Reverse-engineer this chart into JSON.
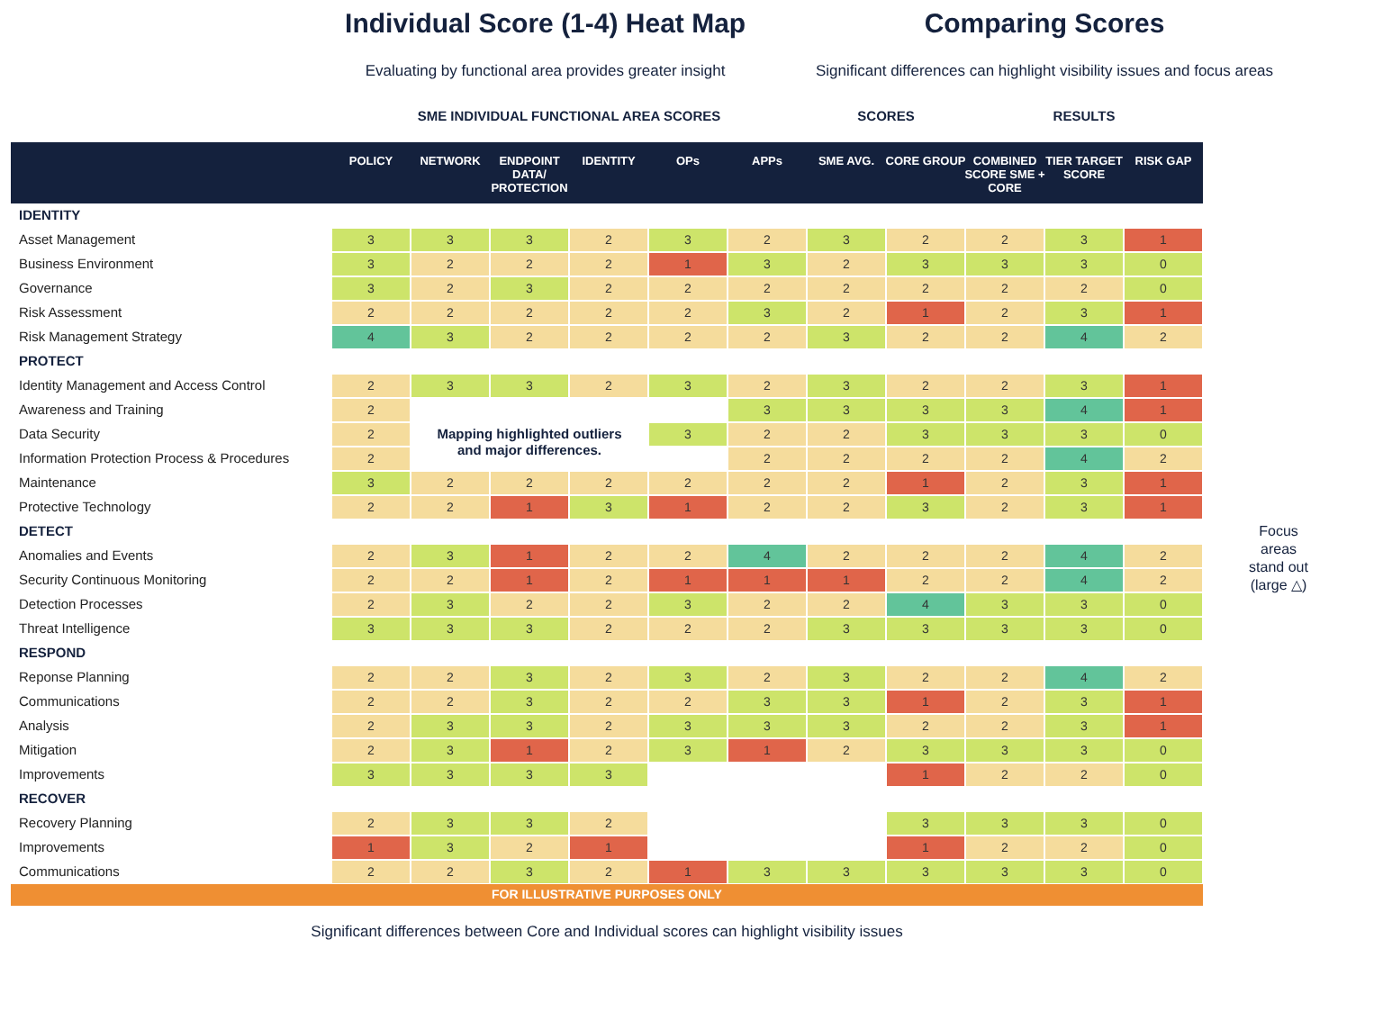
{
  "chart_data": {
    "type": "heatmap",
    "categories": [
      "POLICY",
      "NETWORK",
      "ENDPOINT DATA/ PROTECTION",
      "IDENTITY",
      "OPs",
      "APPs",
      "SME AVG.",
      "CORE GROUP",
      "COMBINED SCORE SME + CORE",
      "TIER TARGET SCORE",
      "RISK GAP"
    ],
    "y_categories": [
      "IDENTITY",
      "Asset Management",
      "Business Environment",
      "Governance",
      "Risk Assessment",
      "Risk Management Strategy",
      "PROTECT",
      "Identity Management and Access Control",
      "Awareness and Training",
      "Data Security",
      "Information Protection Process & Procedures",
      "Maintenance",
      "Protective Technology",
      "DETECT",
      "Anomalies and Events",
      "Security Continuous Monitoring",
      "Detection Processes",
      "Threat Intelligence",
      "RESPOND",
      "Reponse Planning",
      "Communications",
      "Analysis",
      "Mitigation",
      "Improvements",
      "RECOVER",
      "Recovery Planning",
      "Improvements",
      "Communications"
    ],
    "cells": [
      [
        null,
        null,
        null,
        null,
        null,
        null,
        null,
        null,
        null,
        null,
        null
      ],
      [
        3,
        3,
        3,
        2,
        3,
        2,
        3,
        2,
        2,
        3,
        1
      ],
      [
        3,
        2,
        2,
        2,
        1,
        3,
        2,
        3,
        3,
        3,
        0
      ],
      [
        3,
        2,
        3,
        2,
        2,
        2,
        2,
        2,
        2,
        2,
        0
      ],
      [
        2,
        2,
        2,
        2,
        2,
        3,
        2,
        1,
        2,
        3,
        1
      ],
      [
        4,
        3,
        2,
        2,
        2,
        2,
        3,
        2,
        2,
        4,
        2
      ],
      [
        null,
        null,
        null,
        null,
        null,
        null,
        null,
        null,
        null,
        null,
        null
      ],
      [
        2,
        3,
        3,
        2,
        3,
        2,
        3,
        2,
        2,
        3,
        1
      ],
      [
        2,
        null,
        null,
        null,
        null,
        3,
        3,
        3,
        3,
        4,
        1
      ],
      [
        2,
        null,
        null,
        null,
        3,
        2,
        2,
        3,
        3,
        3,
        0
      ],
      [
        2,
        null,
        null,
        null,
        null,
        2,
        2,
        2,
        2,
        4,
        2
      ],
      [
        3,
        2,
        2,
        2,
        2,
        2,
        2,
        1,
        2,
        3,
        1
      ],
      [
        2,
        2,
        1,
        3,
        1,
        2,
        2,
        3,
        2,
        3,
        1
      ],
      [
        null,
        null,
        null,
        null,
        null,
        null,
        null,
        null,
        null,
        null,
        null
      ],
      [
        2,
        3,
        1,
        2,
        2,
        4,
        2,
        2,
        2,
        4,
        2
      ],
      [
        2,
        2,
        1,
        2,
        1,
        1,
        1,
        2,
        2,
        4,
        2
      ],
      [
        2,
        3,
        2,
        2,
        3,
        2,
        2,
        4,
        3,
        3,
        0
      ],
      [
        3,
        3,
        3,
        2,
        2,
        2,
        3,
        3,
        3,
        3,
        0
      ],
      [
        null,
        null,
        null,
        null,
        null,
        null,
        null,
        null,
        null,
        null,
        null
      ],
      [
        2,
        2,
        3,
        2,
        3,
        2,
        3,
        2,
        2,
        4,
        2
      ],
      [
        2,
        2,
        3,
        2,
        2,
        3,
        3,
        1,
        2,
        3,
        1
      ],
      [
        2,
        3,
        3,
        2,
        3,
        3,
        3,
        2,
        2,
        3,
        1
      ],
      [
        2,
        3,
        1,
        2,
        3,
        1,
        2,
        3,
        3,
        3,
        0
      ],
      [
        3,
        3,
        3,
        3,
        null,
        null,
        null,
        1,
        2,
        2,
        0
      ],
      [
        null,
        null,
        null,
        null,
        null,
        null,
        null,
        null,
        null,
        null,
        null
      ],
      [
        2,
        3,
        3,
        2,
        null,
        null,
        null,
        3,
        3,
        3,
        0
      ],
      [
        1,
        3,
        2,
        1,
        null,
        null,
        null,
        1,
        2,
        2,
        0
      ],
      [
        2,
        2,
        3,
        2,
        1,
        3,
        3,
        3,
        3,
        3,
        0
      ]
    ],
    "colors": [
      "#cde46a",
      "#e0654a",
      "#f5dc9c",
      "#cde46a",
      "#62c49a"
    ],
    "data_labels": true,
    "annotations": [
      "Individual Score (1-4) Heat Map",
      "Evaluating by functional area provides greater insight",
      "Comparing Scores",
      "Significant differences can highlight visibility issues and focus areas",
      "SME INDIVIDUAL FUNCTIONAL AREA SCORES",
      "SCORES",
      "RESULTS",
      "Mapping highlighted outliers and major differences.",
      "Focus areas stand out (large △)",
      "Significant differences between Core and Individual scores can highlight visibility issues",
      "FOR ILLUSTRATIVE PURPOSES ONLY"
    ]
  }
}
